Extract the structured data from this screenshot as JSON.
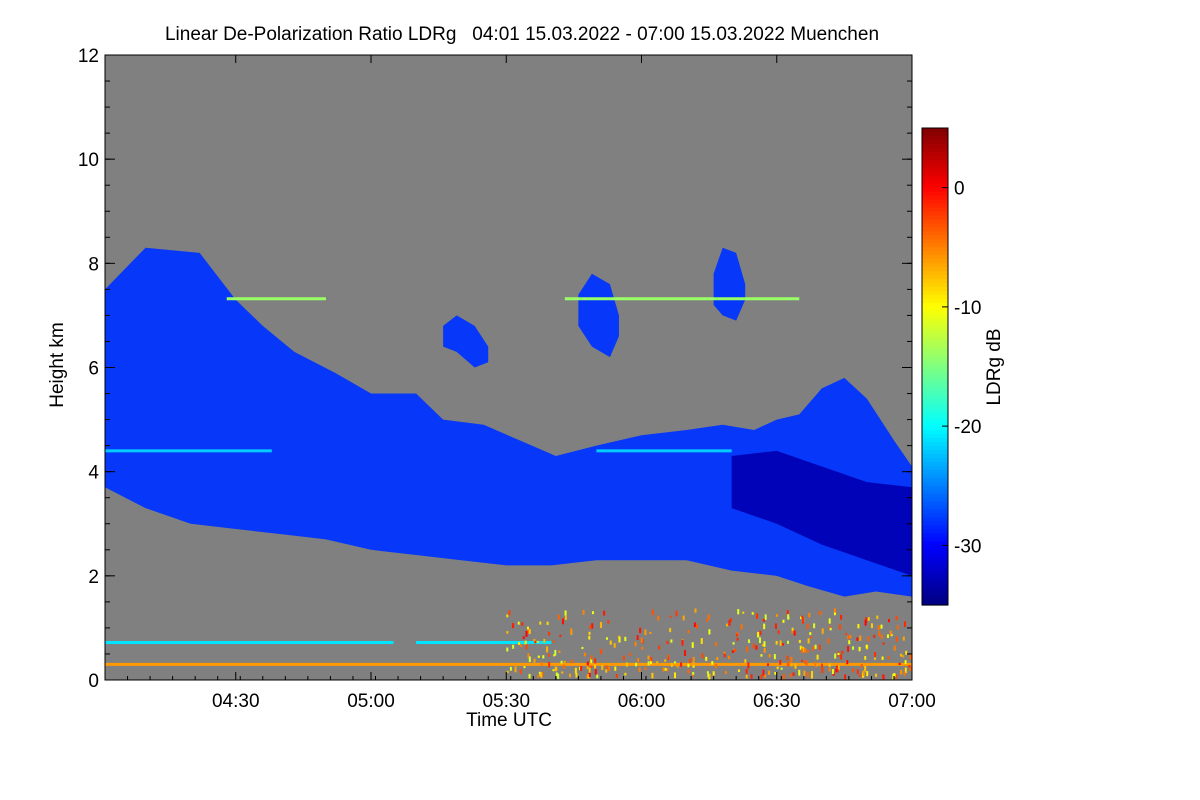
{
  "chart_data": {
    "type": "heatmap",
    "title": "Linear De-Polarization Ratio LDRg   04:01 15.03.2022 - 07:00 15.03.2022 Muenchen",
    "xlabel": "Time UTC",
    "ylabel": "Height km",
    "x_range": [
      "04:01",
      "07:00"
    ],
    "x_ticks": [
      "04:30",
      "05:00",
      "05:30",
      "06:00",
      "06:30",
      "07:00"
    ],
    "x_tick_minutes": [
      270,
      300,
      330,
      360,
      390,
      420
    ],
    "x_minutes_range": [
      241,
      420
    ],
    "ylim": [
      0,
      12
    ],
    "y_ticks": [
      0,
      2,
      4,
      6,
      8,
      10,
      12
    ],
    "colorbar": {
      "label": "LDRg dB",
      "range": [
        -35,
        5
      ],
      "ticks": [
        0,
        -10,
        -20,
        -30
      ],
      "colormap": "jet"
    },
    "background_color": "#808080",
    "features": [
      {
        "name": "cloud",
        "ldr_db": -28,
        "top_km": [
          [
            241,
            7.5
          ],
          [
            250,
            8.3
          ],
          [
            262,
            8.2
          ],
          [
            270,
            7.3
          ],
          [
            276,
            6.8
          ],
          [
            283,
            6.3
          ],
          [
            292,
            5.9
          ],
          [
            300,
            5.5
          ],
          [
            310,
            5.5
          ],
          [
            316,
            5.0
          ],
          [
            325,
            4.9
          ],
          [
            333,
            4.6
          ],
          [
            341,
            4.3
          ],
          [
            350,
            4.5
          ],
          [
            360,
            4.7
          ],
          [
            370,
            4.8
          ],
          [
            378,
            4.9
          ],
          [
            385,
            4.8
          ],
          [
            390,
            5.0
          ],
          [
            395,
            5.1
          ],
          [
            400,
            5.6
          ],
          [
            405,
            5.8
          ],
          [
            410,
            5.4
          ],
          [
            416,
            4.6
          ],
          [
            420,
            4.1
          ]
        ],
        "base_km": [
          [
            241,
            3.7
          ],
          [
            250,
            3.3
          ],
          [
            260,
            3.0
          ],
          [
            270,
            2.9
          ],
          [
            280,
            2.8
          ],
          [
            290,
            2.7
          ],
          [
            300,
            2.5
          ],
          [
            310,
            2.4
          ],
          [
            320,
            2.3
          ],
          [
            330,
            2.2
          ],
          [
            340,
            2.2
          ],
          [
            350,
            2.3
          ],
          [
            360,
            2.3
          ],
          [
            370,
            2.3
          ],
          [
            380,
            2.1
          ],
          [
            390,
            2.0
          ],
          [
            397,
            1.8
          ],
          [
            405,
            1.6
          ],
          [
            412,
            1.7
          ],
          [
            420,
            1.6
          ]
        ]
      },
      {
        "name": "cloud-core",
        "ldr_db": -33,
        "top_km": [
          [
            380,
            4.3
          ],
          [
            390,
            4.4
          ],
          [
            400,
            4.1
          ],
          [
            410,
            3.8
          ],
          [
            420,
            3.7
          ]
        ],
        "base_km": [
          [
            380,
            3.3
          ],
          [
            390,
            3.0
          ],
          [
            400,
            2.6
          ],
          [
            410,
            2.3
          ],
          [
            420,
            2.0
          ]
        ]
      },
      {
        "name": "cirrus-patch-1",
        "ldr_db": -28,
        "top_km": [
          [
            316,
            6.8
          ],
          [
            319,
            7.0
          ],
          [
            323,
            6.8
          ],
          [
            326,
            6.4
          ]
        ],
        "base_km": [
          [
            316,
            6.4
          ],
          [
            319,
            6.3
          ],
          [
            323,
            6.0
          ],
          [
            326,
            6.1
          ]
        ]
      },
      {
        "name": "cirrus-patch-2",
        "ldr_db": -28,
        "top_km": [
          [
            346,
            7.4
          ],
          [
            349,
            7.8
          ],
          [
            353,
            7.6
          ],
          [
            355,
            7.0
          ]
        ],
        "base_km": [
          [
            346,
            6.8
          ],
          [
            349,
            6.4
          ],
          [
            353,
            6.2
          ],
          [
            355,
            6.6
          ]
        ]
      },
      {
        "name": "cirrus-patch-3",
        "ldr_db": -28,
        "top_km": [
          [
            376,
            7.8
          ],
          [
            378,
            8.3
          ],
          [
            381,
            8.2
          ],
          [
            383,
            7.6
          ]
        ],
        "base_km": [
          [
            376,
            7.2
          ],
          [
            378,
            7.0
          ],
          [
            381,
            6.9
          ],
          [
            383,
            7.3
          ]
        ]
      }
    ],
    "layers": [
      {
        "name": "thin-layer-7km",
        "ldr_db": -14,
        "height_km": 7.32,
        "x_minutes": [
          [
            268,
            290
          ],
          [
            343,
            395
          ]
        ]
      },
      {
        "name": "layer-4.4km",
        "ldr_db": -22,
        "height_km": 4.4,
        "x_minutes": [
          [
            241,
            278
          ],
          [
            350,
            380
          ]
        ]
      },
      {
        "name": "layer-0.7km",
        "ldr_db": -21,
        "height_km": 0.72,
        "x_minutes": [
          [
            241,
            305
          ],
          [
            310,
            340
          ]
        ]
      },
      {
        "name": "surface-layer",
        "ldr_db": -6,
        "height_km": 0.3,
        "x_minutes": [
          [
            241,
            420
          ]
        ]
      }
    ],
    "speckle": {
      "ldr_db_range": [
        -12,
        0
      ],
      "height_km_range": [
        0.1,
        1.4
      ],
      "x_minutes": [
        330,
        420
      ]
    }
  }
}
